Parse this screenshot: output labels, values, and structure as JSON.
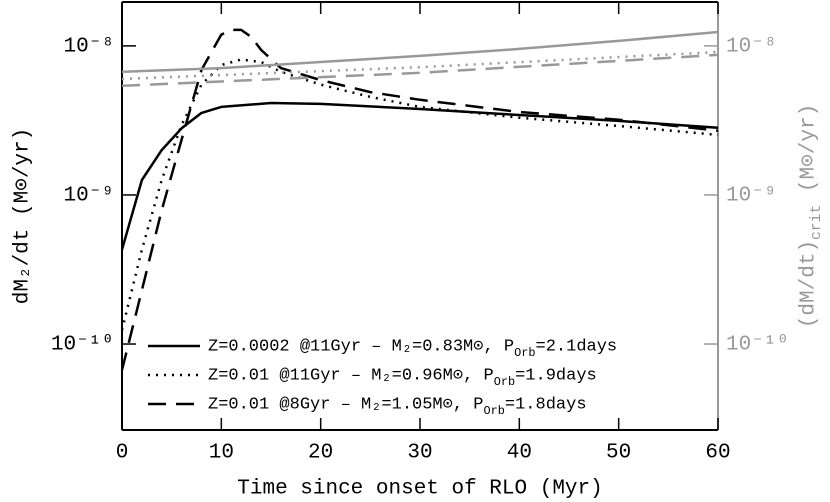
{
  "chart_data": {
    "type": "line",
    "xlabel": "Time since onset of RLO (Myr)",
    "ylabel": "dM₂/dt (M⊙/yr)",
    "y2label": "(dM/dt)crit (M⊙/yr)",
    "xlim": [
      0,
      60
    ],
    "xticks": [
      0,
      10,
      20,
      30,
      40,
      50,
      60
    ],
    "ylog": true,
    "ylim": [
      2.65e-11,
      1.97e-08
    ],
    "yticks": [
      {
        "value": 1e-10,
        "label": "10⁻¹⁰"
      },
      {
        "value": 1e-09,
        "label": "10⁻⁹"
      },
      {
        "value": 1e-08,
        "label": "10⁻⁸"
      }
    ],
    "y2lim": [
      2.65e-11,
      1.97e-08
    ],
    "y2ticks": [
      {
        "value": 1e-10,
        "label": "10⁻¹⁰"
      },
      {
        "value": 1e-09,
        "label": "10⁻⁹"
      },
      {
        "value": 1e-08,
        "label": "10⁻⁸"
      }
    ],
    "y2color": "#999999",
    "legend": "lower left",
    "series": [
      {
        "name": "Z=0.0002 @11Gyr – M₂=0.83M⊙, POrb=2.1days",
        "color": "#000000",
        "dash": "solid",
        "x": [
          0,
          2,
          4,
          6,
          8,
          10,
          15,
          20,
          30,
          40,
          50,
          60
        ],
        "values": [
          4.3e-10,
          1.26e-09,
          2e-09,
          2.8e-09,
          3.55e-09,
          3.9e-09,
          4.14e-09,
          4.08e-09,
          3.77e-09,
          3.44e-09,
          3.14e-09,
          2.82e-09
        ]
      },
      {
        "name": "Z=0.01 @11Gyr – M₂=0.96M⊙, POrb=1.9days",
        "color": "#000000",
        "dash": "dotted",
        "x": [
          0,
          2,
          4,
          6,
          8,
          10,
          12,
          14,
          16,
          20,
          25,
          30,
          40,
          50,
          60
        ],
        "values": [
          1.24e-10,
          4.3e-10,
          1.26e-09,
          2.95e-09,
          5.5e-09,
          7.45e-09,
          8.1e-09,
          7.8e-09,
          6.7e-09,
          5.5e-09,
          4.55e-09,
          3.9e-09,
          3.3e-09,
          2.9e-09,
          2.53e-09
        ]
      },
      {
        "name": "Z=0.01 @8Gyr – M₂=1.05M⊙, POrb=1.8days",
        "color": "#000000",
        "dash": "dashed",
        "x": [
          0,
          2,
          4,
          6,
          8,
          10,
          11,
          12,
          13,
          14,
          16,
          20,
          25,
          30,
          40,
          50,
          60
        ],
        "values": [
          6.7e-11,
          2.3e-10,
          7.9e-10,
          2.35e-09,
          6.9e-09,
          1.19e-08,
          1.28e-08,
          1.28e-08,
          1.15e-08,
          9.4e-09,
          7.1e-09,
          5.9e-09,
          4.9e-09,
          4.35e-09,
          3.6e-09,
          3.2e-09,
          2.7e-09
        ]
      },
      {
        "color": "#999999",
        "dash": "solid",
        "axis": "y2",
        "x": [
          0,
          10,
          20,
          30,
          40,
          50,
          60
        ],
        "values": [
          6.7e-09,
          7.1e-09,
          7.8e-09,
          8.57e-09,
          9.55e-09,
          1.08e-08,
          1.24e-08
        ]
      },
      {
        "color": "#999999",
        "dash": "dotted",
        "axis": "y2",
        "x": [
          0,
          30,
          60
        ],
        "values": [
          6e-09,
          7.2e-09,
          9.1e-09
        ]
      },
      {
        "color": "#999999",
        "dash": "dashed",
        "axis": "y2",
        "x": [
          0,
          30,
          60
        ],
        "values": [
          5.4e-09,
          6.6e-09,
          8.7e-09
        ]
      }
    ]
  }
}
